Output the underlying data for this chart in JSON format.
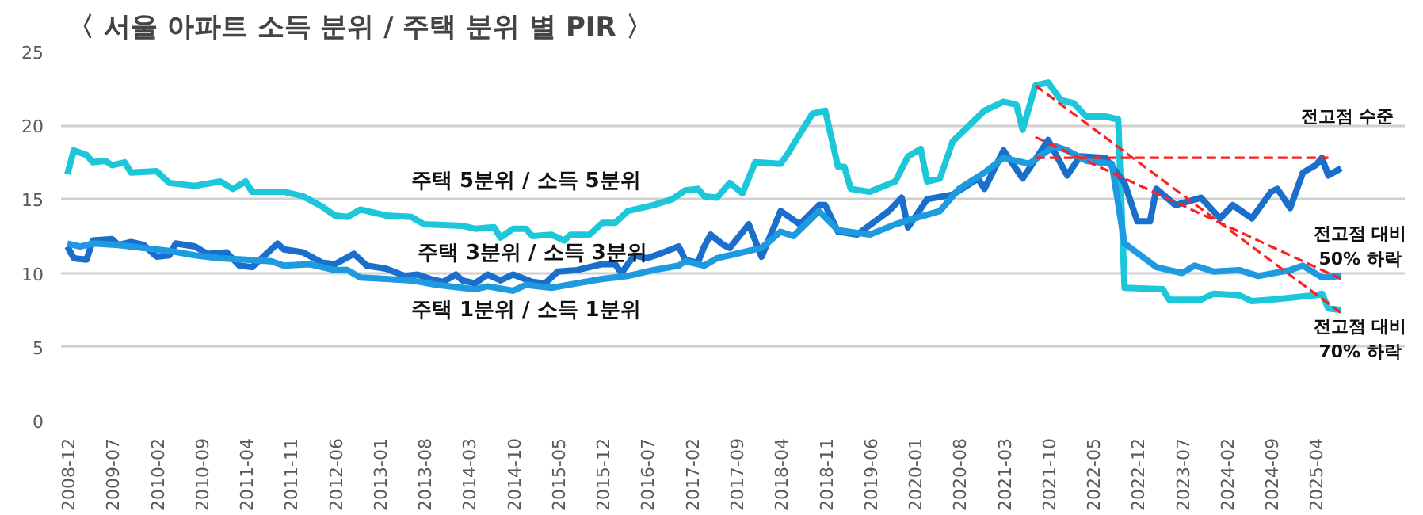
{
  "chart_data": {
    "type": "line",
    "title": "〈 서울 아파트 소득 분위 / 주택 분위 별 PIR 〉",
    "xlim": [
      "2008-11",
      "2026-06"
    ],
    "ylim": [
      0,
      25
    ],
    "yticks": [
      0,
      5,
      10,
      15,
      20,
      25
    ],
    "xticks": [
      "2008-12",
      "2009-07",
      "2010-02",
      "2010-09",
      "2011-04",
      "2011-11",
      "2012-06",
      "2013-01",
      "2013-08",
      "2014-03",
      "2014-10",
      "2015-05",
      "2015-12",
      "2016-07",
      "2017-02",
      "2017-09",
      "2018-04",
      "2018-11",
      "2019-06",
      "2020-01",
      "2020-08",
      "2021-03",
      "2021-10",
      "2022-05",
      "2022-12",
      "2023-07",
      "2024-02",
      "2024-09",
      "2025-04"
    ],
    "grid": "y",
    "legend": false,
    "series": [
      {
        "name": "주택 5분위 / 소득 5분위",
        "color": "#1cc7d9",
        "line_style": "solid",
        "x": [
          "2008-12",
          "2009-01",
          "2009-03",
          "2009-04",
          "2009-06",
          "2009-07",
          "2009-09",
          "2009-10",
          "2010-02",
          "2010-04",
          "2010-08",
          "2010-12",
          "2011-02",
          "2011-04",
          "2011-05",
          "2011-10",
          "2012-01",
          "2012-04",
          "2012-06",
          "2012-08",
          "2012-10",
          "2013-02",
          "2013-06",
          "2013-08",
          "2014-02",
          "2014-04",
          "2014-07",
          "2014-08",
          "2014-10",
          "2014-12",
          "2015-01",
          "2015-04",
          "2015-06",
          "2015-07",
          "2015-10",
          "2015-12",
          "2016-02",
          "2016-04",
          "2016-08",
          "2016-11",
          "2017-01",
          "2017-03",
          "2017-04",
          "2017-06",
          "2017-08",
          "2017-10",
          "2017-12",
          "2018-04",
          "2018-05",
          "2018-09",
          "2018-11",
          "2019-01",
          "2019-02",
          "2019-03",
          "2019-06",
          "2019-10",
          "2019-12",
          "2020-02",
          "2020-03",
          "2020-05",
          "2020-07",
          "2020-12",
          "2021-03",
          "2021-05",
          "2021-06",
          "2021-08",
          "2021-10",
          "2021-12",
          "2022-02",
          "2022-04",
          "2022-07",
          "2022-09",
          "2022-10",
          "2023-04",
          "2023-05",
          "2023-10",
          "2023-12",
          "2024-04",
          "2024-06",
          "2024-09",
          "2025-04",
          "2025-05",
          "2025-06",
          "2025-08"
        ],
        "values": [
          16.7,
          18.3,
          18.0,
          17.5,
          17.6,
          17.3,
          17.5,
          16.8,
          16.9,
          16.1,
          15.9,
          16.2,
          15.7,
          16.2,
          15.5,
          15.5,
          15.2,
          14.5,
          13.9,
          13.8,
          14.3,
          13.9,
          13.8,
          13.3,
          13.2,
          13.0,
          13.1,
          12.4,
          13.0,
          13.0,
          12.5,
          12.6,
          12.2,
          12.6,
          12.6,
          13.4,
          13.4,
          14.2,
          14.6,
          15.0,
          15.6,
          15.7,
          15.2,
          15.1,
          16.1,
          15.4,
          17.5,
          17.4,
          18.0,
          20.8,
          21.0,
          17.2,
          17.2,
          15.7,
          15.5,
          16.2,
          17.9,
          18.4,
          16.2,
          16.4,
          18.9,
          21.0,
          21.6,
          21.4,
          19.7,
          22.7,
          22.9,
          21.7,
          21.5,
          20.6,
          20.6,
          20.4,
          9.0,
          8.9,
          8.2,
          8.2,
          8.6,
          8.5,
          8.1,
          8.2,
          8.5,
          8.6,
          7.6,
          7.5
        ]
      },
      {
        "name": "주택 3분위 / 소득 3분위",
        "color": "#1a6fcc",
        "line_style": "solid",
        "x": [
          "2008-12",
          "2009-01",
          "2009-03",
          "2009-04",
          "2009-07",
          "2009-08",
          "2009-10",
          "2009-12",
          "2010-02",
          "2010-04",
          "2010-05",
          "2010-08",
          "2010-10",
          "2011-01",
          "2011-03",
          "2011-05",
          "2011-07",
          "2011-09",
          "2011-10",
          "2012-01",
          "2012-04",
          "2012-06",
          "2012-09",
          "2012-11",
          "2013-02",
          "2013-05",
          "2013-07",
          "2013-09",
          "2013-11",
          "2014-01",
          "2014-02",
          "2014-04",
          "2014-06",
          "2014-08",
          "2014-10",
          "2015-01",
          "2015-03",
          "2015-05",
          "2015-08",
          "2015-10",
          "2015-12",
          "2016-02",
          "2016-03",
          "2016-05",
          "2016-07",
          "2016-09",
          "2016-12",
          "2017-01",
          "2017-03",
          "2017-04",
          "2017-05",
          "2017-07",
          "2017-08",
          "2017-11",
          "2018-01",
          "2018-04",
          "2018-07",
          "2018-10",
          "2018-11",
          "2019-01",
          "2019-04",
          "2019-09",
          "2019-11",
          "2019-12",
          "2020-03",
          "2020-07",
          "2020-11",
          "2020-12",
          "2021-03",
          "2021-06",
          "2021-10",
          "2022-01",
          "2022-03",
          "2022-07",
          "2022-10",
          "2022-12",
          "2023-02",
          "2023-03",
          "2023-06",
          "2023-10",
          "2024-01",
          "2024-03",
          "2024-06",
          "2024-09",
          "2024-10",
          "2024-12",
          "2025-02",
          "2025-04",
          "2025-05",
          "2025-06",
          "2025-08"
        ],
        "values": [
          11.8,
          11.0,
          10.9,
          12.2,
          12.3,
          11.9,
          12.1,
          11.9,
          11.1,
          11.2,
          12.0,
          11.8,
          11.3,
          11.4,
          10.5,
          10.4,
          11.2,
          12.0,
          11.6,
          11.4,
          10.7,
          10.6,
          11.3,
          10.5,
          10.3,
          9.8,
          9.9,
          9.6,
          9.4,
          9.9,
          9.5,
          9.3,
          9.9,
          9.5,
          9.9,
          9.4,
          9.3,
          10.1,
          10.2,
          10.4,
          10.6,
          10.6,
          10.0,
          11.2,
          11.0,
          11.3,
          11.8,
          10.9,
          10.7,
          11.8,
          12.6,
          11.9,
          11.7,
          13.3,
          11.1,
          14.2,
          13.3,
          14.6,
          14.6,
          12.8,
          12.6,
          14.2,
          15.1,
          13.1,
          15.0,
          15.3,
          16.4,
          15.7,
          18.3,
          16.4,
          19.0,
          16.6,
          17.9,
          17.8,
          16.1,
          13.5,
          13.5,
          15.7,
          14.6,
          15.1,
          13.7,
          14.6,
          13.7,
          15.5,
          15.7,
          14.4,
          16.8,
          17.3,
          17.8,
          16.6,
          17.1
        ]
      },
      {
        "name": "주택 1분위 / 소득 1분위",
        "color": "#1e9be0",
        "line_style": "solid",
        "x": [
          "2008-12",
          "2009-02",
          "2009-04",
          "2009-08",
          "2009-12",
          "2010-04",
          "2010-08",
          "2010-12",
          "2011-04",
          "2011-08",
          "2011-10",
          "2012-02",
          "2012-06",
          "2012-08",
          "2012-10",
          "2013-02",
          "2013-06",
          "2013-10",
          "2014-02",
          "2014-04",
          "2014-06",
          "2014-10",
          "2014-12",
          "2015-04",
          "2015-08",
          "2015-12",
          "2016-04",
          "2016-08",
          "2016-12",
          "2017-01",
          "2017-04",
          "2017-06",
          "2017-08",
          "2018-01",
          "2018-04",
          "2018-06",
          "2018-10",
          "2019-01",
          "2019-06",
          "2019-10",
          "2020-01",
          "2020-05",
          "2020-08",
          "2020-12",
          "2021-03",
          "2021-07",
          "2021-11",
          "2022-01",
          "2022-04",
          "2022-08",
          "2022-10",
          "2023-03",
          "2023-07",
          "2023-09",
          "2023-12",
          "2024-04",
          "2024-07",
          "2024-12",
          "2025-02",
          "2025-05",
          "2025-08"
        ],
        "values": [
          12.0,
          11.8,
          12.0,
          11.9,
          11.7,
          11.5,
          11.2,
          11.0,
          10.9,
          10.8,
          10.5,
          10.6,
          10.2,
          10.2,
          9.7,
          9.6,
          9.5,
          9.2,
          9.0,
          8.9,
          9.1,
          8.8,
          9.2,
          9.0,
          9.3,
          9.6,
          9.8,
          10.2,
          10.5,
          10.8,
          10.5,
          11.0,
          11.2,
          11.7,
          12.8,
          12.5,
          14.2,
          12.9,
          12.6,
          13.3,
          13.7,
          14.2,
          15.7,
          16.8,
          17.8,
          17.4,
          18.6,
          18.3,
          17.6,
          17.4,
          12.0,
          10.4,
          10.0,
          10.5,
          10.1,
          10.2,
          9.8,
          10.2,
          10.5,
          9.7,
          9.8
        ]
      },
      {
        "type": "line",
        "color": "#ff2020",
        "line_style": "dashed",
        "x": [
          "2021-08",
          "2025-06"
        ],
        "values": [
          17.8,
          17.8
        ]
      },
      {
        "type": "line",
        "color": "#ff2020",
        "line_style": "dashed",
        "x": [
          "2021-08",
          "2025-08"
        ],
        "values": [
          22.7,
          7.3
        ]
      },
      {
        "type": "line",
        "color": "#ff2020",
        "line_style": "dashed",
        "x": [
          "2021-08",
          "2025-08"
        ],
        "values": [
          19.2,
          9.6
        ]
      }
    ],
    "annotations": [
      "전고점 수준",
      "전고점 대비\n50% 하락",
      "전고점 대비\n70% 하락"
    ]
  }
}
